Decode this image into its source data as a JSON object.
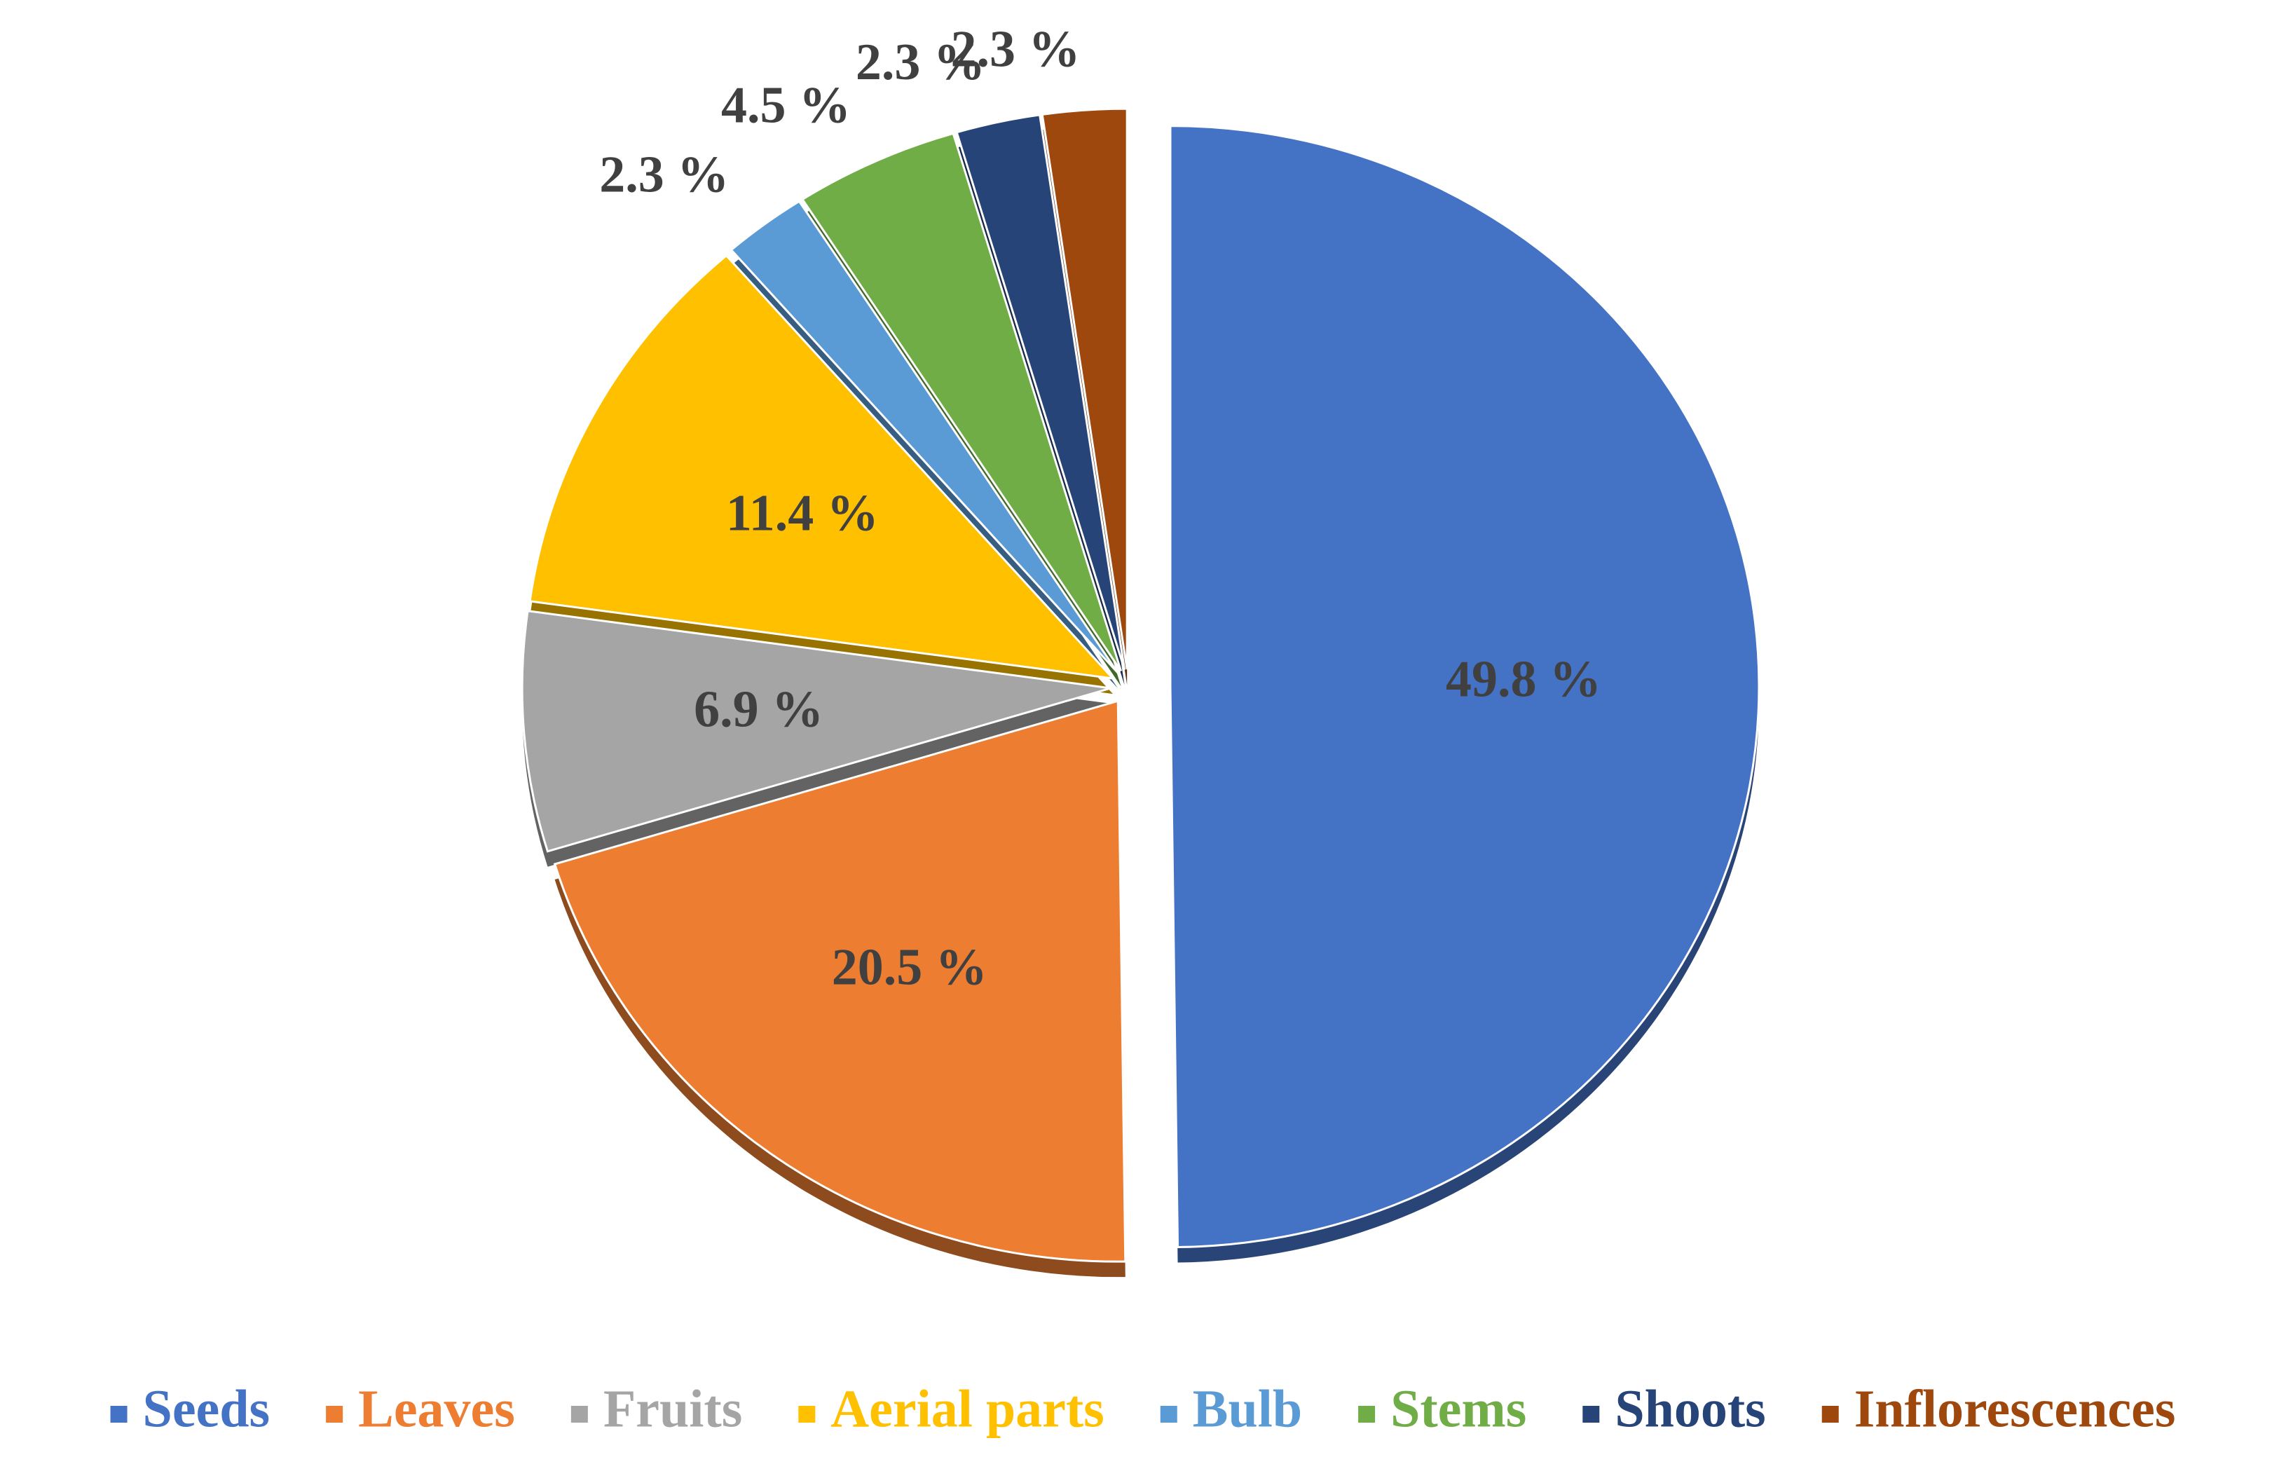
{
  "chart_data": {
    "type": "pie",
    "categories": [
      "Seeds",
      "Leaves",
      "Fruits",
      "Aerial parts",
      "Bulb",
      "Stems",
      "Shoots",
      "Inflorescences"
    ],
    "values": [
      49.8,
      20.5,
      6.9,
      11.4,
      2.3,
      4.5,
      2.3,
      2.3
    ],
    "value_labels": [
      "49.8 %",
      "20.5 %",
      "6.9 %",
      "11.4 %",
      "2.3 %",
      "4.5 %",
      "2.3 %",
      "2.3 %"
    ],
    "colors": [
      "#4472c4",
      "#ed7d31",
      "#a5a5a5",
      "#ffc000",
      "#5b9bd5",
      "#70ad47",
      "#264478",
      "#9e480e"
    ],
    "legend": "bottom"
  }
}
